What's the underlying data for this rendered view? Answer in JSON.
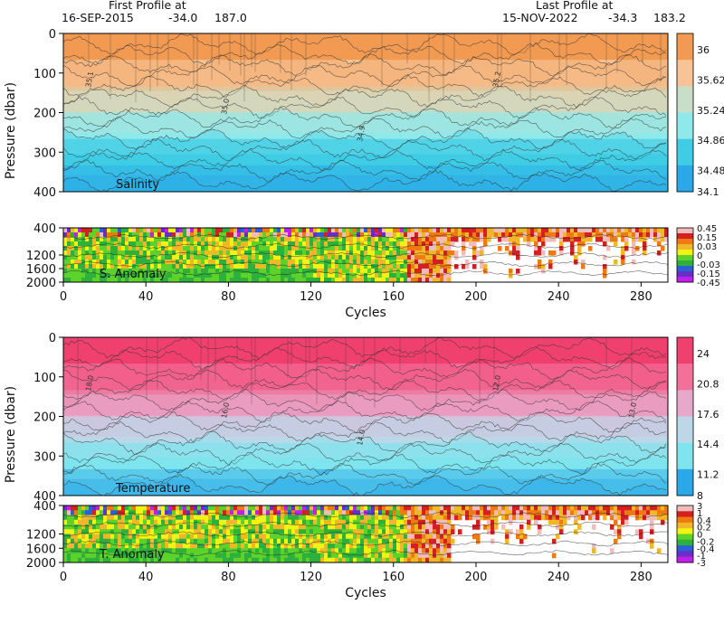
{
  "header": {
    "first_label": "First Profile at",
    "first_date": "16-SEP-2015",
    "first_lat": "-34.0",
    "first_lon": "187.0",
    "last_label": "Last Profile at",
    "last_date": "15-NOV-2022",
    "last_lat": "-34.3",
    "last_lon": "183.2"
  },
  "chart_data": [
    {
      "type": "heatmap",
      "panel": "salinity",
      "label": "Salinity",
      "ylabel": "Pressure (dbar)",
      "ylim": [
        0,
        400
      ],
      "yticks": [
        0,
        100,
        200,
        300,
        400
      ],
      "xlim": [
        0,
        293
      ],
      "colorbar_levels": [
        "36",
        "35.62",
        "35.24",
        "34.86",
        "34.48",
        "34.1"
      ],
      "colors": [
        "#f29a52",
        "#f8c496",
        "#c9dec6",
        "#8fe8ea",
        "#3fcde6",
        "#2aa8e9"
      ],
      "contour_labels": [
        "35.1",
        "35.0",
        "34.9",
        "35.2"
      ]
    },
    {
      "type": "heatmap",
      "panel": "salinity-anomaly",
      "label": "S. Anomaly",
      "ylim": [
        400,
        2000
      ],
      "yticks": [
        400,
        1200,
        1600,
        2000
      ],
      "xlim": [
        0,
        293
      ],
      "colorbar_levels": [
        "0.45",
        "0.15",
        "0.03",
        "0",
        "-0.03",
        "-0.15",
        "-0.45"
      ],
      "colors": [
        "#f2bcbc",
        "#d42020",
        "#ee7a10",
        "#f0b828",
        "#f2f214",
        "#5cd22a",
        "#2db03c",
        "#2a5fd6",
        "#6a2ec8",
        "#c020ea"
      ]
    },
    {
      "type": "heatmap",
      "panel": "temperature",
      "label": "Temperature",
      "ylabel": "Pressure (dbar)",
      "ylim": [
        0,
        400
      ],
      "yticks": [
        0,
        100,
        200,
        300,
        400
      ],
      "xlim": [
        0,
        293
      ],
      "colorbar_levels": [
        "24",
        "20.8",
        "17.6",
        "14.4",
        "11.2",
        "8"
      ],
      "colors": [
        "#f0406e",
        "#f2709a",
        "#e8a8cb",
        "#bcd8e8",
        "#7ee4ee",
        "#2aa8e9"
      ],
      "contour_labels": [
        "18.0",
        "16.0",
        "14.0",
        "12.0",
        "13.0",
        "17.0"
      ]
    },
    {
      "type": "heatmap",
      "panel": "temperature-anomaly",
      "label": "T. Anomaly",
      "xlabel": "Cycles",
      "ylim": [
        400,
        2000
      ],
      "yticks": [
        400,
        1200,
        1600,
        2000
      ],
      "xlim": [
        0,
        293
      ],
      "xticks": [
        0,
        40,
        80,
        120,
        160,
        200,
        240,
        280
      ],
      "colorbar_levels": [
        "3",
        "1",
        "0.4",
        "0.2",
        "0",
        "-0.2",
        "-0.4",
        "-1",
        "-3"
      ],
      "colors": [
        "#f2bcbc",
        "#d42020",
        "#ee7a10",
        "#f0b828",
        "#f2f214",
        "#5cd22a",
        "#2db03c",
        "#2a5fd6",
        "#6a2ec8",
        "#c020ea"
      ]
    }
  ],
  "axes": {
    "xlabel": "Cycles",
    "xticks": [
      "0",
      "40",
      "80",
      "120",
      "160",
      "200",
      "240",
      "280"
    ]
  }
}
